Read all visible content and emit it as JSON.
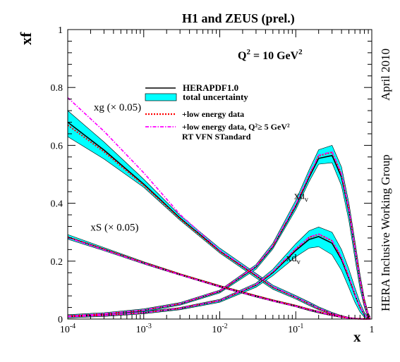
{
  "chart_data": {
    "type": "line",
    "title": "H1 and ZEUS (prel.)",
    "scale_label": {
      "main": "Q",
      "sup1": "2",
      "mid": " = 10 GeV",
      "sup2": "2"
    },
    "xlabel": "x",
    "ylabel": "xf",
    "side_labels": {
      "date": "April 2010",
      "group": "HERA Inclusive Working Group"
    },
    "xscale": "log",
    "xlim": [
      0.0001,
      1
    ],
    "ylim": [
      0,
      1
    ],
    "x_ticks": [
      {
        "value": 0.0001,
        "base": "10",
        "exp": "-4"
      },
      {
        "value": 0.001,
        "base": "10",
        "exp": "-3"
      },
      {
        "value": 0.01,
        "base": "10",
        "exp": "-2"
      },
      {
        "value": 0.1,
        "base": "10",
        "exp": "-1"
      },
      {
        "value": 1,
        "base": "1",
        "exp": ""
      }
    ],
    "y_ticks": [
      {
        "value": 0,
        "label": "0"
      },
      {
        "value": 0.2,
        "label": "0.2"
      },
      {
        "value": 0.4,
        "label": "0.4"
      },
      {
        "value": 0.6,
        "label": "0.6"
      },
      {
        "value": 0.8,
        "label": "0.8"
      },
      {
        "value": 1,
        "label": "1"
      }
    ],
    "legend": {
      "placement": "upper-center",
      "entries": [
        {
          "label": "HERAPDF1.0",
          "style": "solid-black"
        },
        {
          "label": "total uncertainty",
          "style": "cyan-band"
        },
        {
          "label": "+low energy data",
          "style": "red-dotted"
        },
        {
          "label": "+low energy data, Q²≥ 5 GeV²",
          "style": "magenta-dashdot"
        },
        {
          "label": "RT VFN STandard",
          "style": "none"
        }
      ]
    },
    "colors": {
      "band": "#00ffff",
      "band_edge": "#000000",
      "central": "#000000",
      "low_energy": "#ff0000",
      "q2cut": "#ff00ff"
    },
    "x": [
      0.0001,
      0.0003,
      0.001,
      0.003,
      0.01,
      0.03,
      0.05,
      0.1,
      0.15,
      0.2,
      0.3,
      0.4,
      0.5,
      0.6,
      0.7,
      0.8,
      0.9,
      0.95
    ],
    "series": [
      {
        "name": "xg",
        "label": {
          "text": "xg (× 0.05)",
          "at": [
            0.00022,
            0.72
          ]
        },
        "central": [
          0.68,
          0.584,
          0.466,
          0.349,
          0.235,
          0.15,
          0.11,
          0.075,
          0.053,
          0.037,
          0.019,
          0.009,
          0.004,
          0.002,
          0.001,
          0.0005,
          0.0002,
          0.0001
        ],
        "band_lo": [
          0.63,
          0.553,
          0.455,
          0.341,
          0.228,
          0.142,
          0.103,
          0.069,
          0.047,
          0.032,
          0.016,
          0.006,
          0.002,
          0.001,
          0.0,
          0.0,
          0.0,
          0.0
        ],
        "band_hi": [
          0.72,
          0.612,
          0.483,
          0.358,
          0.245,
          0.158,
          0.117,
          0.081,
          0.059,
          0.042,
          0.023,
          0.012,
          0.006,
          0.003,
          0.002,
          0.001,
          0.0005,
          0.0002
        ],
        "low_energy": [
          0.67,
          0.578,
          0.462,
          0.346,
          0.233,
          0.149,
          0.109,
          0.074,
          0.052,
          0.036,
          0.018,
          0.009,
          0.004,
          0.002,
          0.001,
          0.0005,
          0.0002,
          0.0001
        ],
        "q2cut": [
          0.765,
          0.649,
          0.505,
          0.361,
          0.238,
          0.153,
          0.112,
          0.076,
          0.054,
          0.037,
          0.019,
          0.009,
          0.004,
          0.002,
          0.001,
          0.0005,
          0.0002,
          0.0001
        ]
      },
      {
        "name": "xS",
        "label": {
          "text": "xS (× 0.05)",
          "at": [
            0.0002,
            0.305
          ]
        },
        "central": [
          0.283,
          0.241,
          0.194,
          0.154,
          0.113,
          0.079,
          0.064,
          0.045,
          0.032,
          0.024,
          0.013,
          0.007,
          0.003,
          0.001,
          0.0005,
          0.0002,
          0.0001,
          0.0
        ],
        "band_lo": [
          0.276,
          0.236,
          0.19,
          0.151,
          0.11,
          0.076,
          0.061,
          0.042,
          0.029,
          0.021,
          0.011,
          0.005,
          0.002,
          0.0005,
          0.0,
          0.0,
          0.0,
          0.0
        ],
        "band_hi": [
          0.292,
          0.247,
          0.198,
          0.157,
          0.116,
          0.082,
          0.067,
          0.048,
          0.035,
          0.027,
          0.015,
          0.009,
          0.004,
          0.002,
          0.001,
          0.0005,
          0.0002,
          0.0001
        ],
        "low_energy": [
          0.284,
          0.242,
          0.195,
          0.155,
          0.114,
          0.08,
          0.065,
          0.046,
          0.033,
          0.025,
          0.014,
          0.007,
          0.003,
          0.001,
          0.0005,
          0.0002,
          0.0001,
          0.0
        ],
        "q2cut": [
          0.281,
          0.239,
          0.193,
          0.153,
          0.112,
          0.078,
          0.063,
          0.044,
          0.032,
          0.024,
          0.013,
          0.007,
          0.003,
          0.001,
          0.0005,
          0.0002,
          0.0001,
          0.0
        ]
      },
      {
        "name": "xuᵥ",
        "label": {
          "text": "xu",
          "sub": "v",
          "at": [
            0.095,
            0.415
          ]
        },
        "central": [
          0.01,
          0.017,
          0.03,
          0.052,
          0.095,
          0.18,
          0.25,
          0.39,
          0.49,
          0.555,
          0.565,
          0.49,
          0.37,
          0.24,
          0.13,
          0.055,
          0.012,
          0.003
        ],
        "band_lo": [
          0.005,
          0.012,
          0.025,
          0.048,
          0.09,
          0.172,
          0.242,
          0.378,
          0.475,
          0.535,
          0.54,
          0.46,
          0.34,
          0.21,
          0.105,
          0.04,
          0.005,
          0.0
        ],
        "band_hi": [
          0.015,
          0.022,
          0.035,
          0.057,
          0.1,
          0.188,
          0.262,
          0.41,
          0.515,
          0.585,
          0.6,
          0.525,
          0.4,
          0.27,
          0.155,
          0.07,
          0.02,
          0.008
        ],
        "low_energy": [
          0.011,
          0.018,
          0.031,
          0.053,
          0.096,
          0.182,
          0.253,
          0.395,
          0.497,
          0.564,
          0.576,
          0.5,
          0.378,
          0.246,
          0.134,
          0.057,
          0.012,
          0.003
        ],
        "q2cut": [
          0.01,
          0.018,
          0.031,
          0.053,
          0.097,
          0.183,
          0.254,
          0.396,
          0.498,
          0.566,
          0.578,
          0.502,
          0.379,
          0.247,
          0.135,
          0.057,
          0.012,
          0.003
        ]
      },
      {
        "name": "xdᵥ",
        "label": {
          "text": "xd",
          "sub": "v",
          "at": [
            0.075,
            0.2
          ]
        },
        "central": [
          0.008,
          0.013,
          0.022,
          0.036,
          0.063,
          0.117,
          0.16,
          0.237,
          0.275,
          0.285,
          0.262,
          0.205,
          0.14,
          0.083,
          0.04,
          0.014,
          0.003,
          0.001
        ],
        "band_lo": [
          0.004,
          0.009,
          0.018,
          0.032,
          0.058,
          0.11,
          0.15,
          0.215,
          0.245,
          0.25,
          0.222,
          0.168,
          0.108,
          0.058,
          0.024,
          0.006,
          0.0,
          0.0
        ],
        "band_hi": [
          0.012,
          0.017,
          0.026,
          0.04,
          0.068,
          0.124,
          0.172,
          0.26,
          0.305,
          0.318,
          0.3,
          0.24,
          0.172,
          0.108,
          0.057,
          0.023,
          0.007,
          0.003
        ],
        "low_energy": [
          0.008,
          0.013,
          0.022,
          0.037,
          0.064,
          0.119,
          0.163,
          0.242,
          0.282,
          0.293,
          0.27,
          0.212,
          0.145,
          0.086,
          0.042,
          0.015,
          0.003,
          0.001
        ],
        "q2cut": [
          0.008,
          0.013,
          0.022,
          0.037,
          0.064,
          0.119,
          0.164,
          0.243,
          0.283,
          0.294,
          0.271,
          0.213,
          0.146,
          0.086,
          0.042,
          0.015,
          0.003,
          0.001
        ]
      }
    ]
  }
}
